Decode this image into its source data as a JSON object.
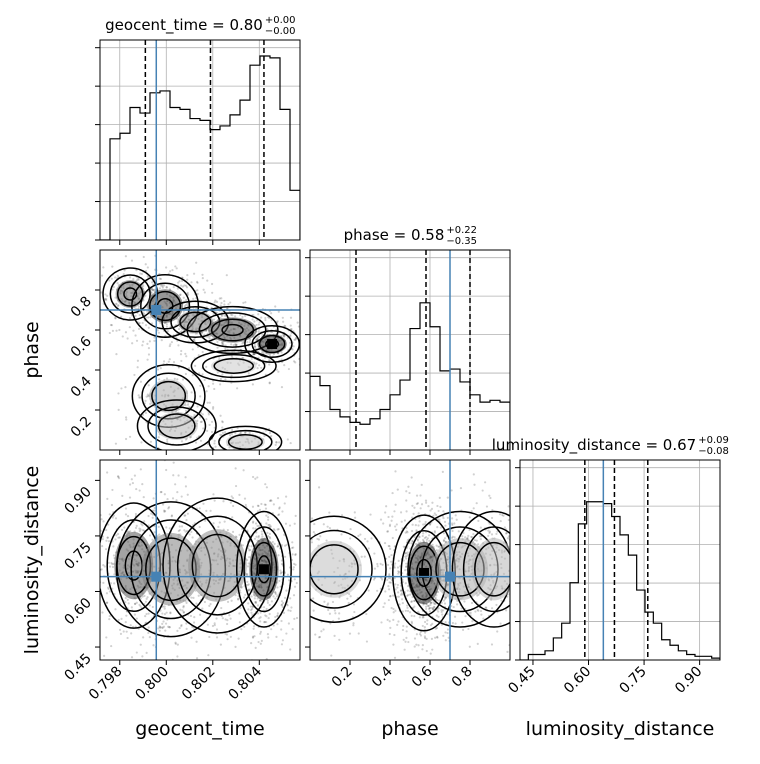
{
  "chart_data": {
    "type": "corner",
    "colors": {
      "truth": "#4682b4",
      "frame": "#000000",
      "grid": "#b0b0b0"
    },
    "grid": true,
    "parameters": [
      {
        "name": "geocent_time",
        "label": "geocent_time",
        "truth": 0.79957,
        "range": [
          0.79715,
          0.80575
        ],
        "ticks": [
          0.798,
          0.8,
          0.802,
          0.804
        ],
        "tick_labels": [
          "0.798",
          "0.800",
          "0.802",
          "0.804"
        ],
        "quantiles": [
          0.7991,
          0.8019,
          0.8042
        ],
        "title": "geocent_time = 0.80",
        "title_plus": "+0.00",
        "title_minus": "−0.00",
        "histogram": [
          0.0,
          0.55,
          0.58,
          0.72,
          0.69,
          0.8,
          0.81,
          0.72,
          0.71,
          0.66,
          0.65,
          0.6,
          0.62,
          0.68,
          0.76,
          0.95,
          1.0,
          0.99,
          0.71,
          0.27
        ]
      },
      {
        "name": "phase",
        "label": "phase",
        "truth": 0.7,
        "range": [
          0.0,
          1.0
        ],
        "ticks": [
          0.2,
          0.4,
          0.6,
          0.8
        ],
        "tick_labels": [
          "0.2",
          "0.4",
          "0.6",
          "0.8"
        ],
        "quantiles": [
          0.23,
          0.58,
          0.8
        ],
        "title": "phase = 0.58",
        "title_plus": "+0.22",
        "title_minus": "−0.35",
        "histogram": [
          0.4,
          0.35,
          0.22,
          0.18,
          0.15,
          0.14,
          0.17,
          0.22,
          0.3,
          0.38,
          0.66,
          0.8,
          0.67,
          0.43,
          0.44,
          0.37,
          0.3,
          0.26,
          0.27,
          0.26
        ]
      },
      {
        "name": "luminosity_distance",
        "label": "luminosity_distance",
        "truth": 0.64,
        "range": [
          0.415,
          0.955
        ],
        "ticks": [
          0.45,
          0.6,
          0.75,
          0.9
        ],
        "tick_labels": [
          "0.45",
          "0.60",
          "0.75",
          "0.90"
        ],
        "quantiles": [
          0.59,
          0.67,
          0.76
        ],
        "title": "luminosity_distance = 0.67",
        "title_plus": "+0.09",
        "title_minus": "−0.08",
        "histogram": [
          0.0,
          0.03,
          0.03,
          0.05,
          0.12,
          0.2,
          0.42,
          0.74,
          0.86,
          0.86,
          0.85,
          0.78,
          0.68,
          0.57,
          0.38,
          0.26,
          0.2,
          0.11,
          0.08,
          0.05,
          0.03,
          0.02,
          0.02,
          0.01
        ]
      }
    ],
    "panels": [
      {
        "x": "geocent_time",
        "y": "phase",
        "density_blobs": [
          {
            "cx": 0.79845,
            "cy": 0.78,
            "sx": 0.00045,
            "sy": 0.05,
            "w": 0.7
          },
          {
            "cx": 0.79995,
            "cy": 0.72,
            "sx": 0.00055,
            "sy": 0.06,
            "w": 0.9
          },
          {
            "cx": 0.80125,
            "cy": 0.64,
            "sx": 0.00055,
            "sy": 0.04,
            "w": 0.6
          },
          {
            "cx": 0.80285,
            "cy": 0.6,
            "sx": 0.00075,
            "sy": 0.045,
            "w": 0.85
          },
          {
            "cx": 0.80455,
            "cy": 0.53,
            "sx": 0.00045,
            "sy": 0.035,
            "w": 1.0
          },
          {
            "cx": 0.8029,
            "cy": 0.42,
            "sx": 0.0007,
            "sy": 0.03,
            "w": 0.25
          },
          {
            "cx": 0.8001,
            "cy": 0.27,
            "sx": 0.0006,
            "sy": 0.06,
            "w": 0.4
          },
          {
            "cx": 0.80045,
            "cy": 0.12,
            "sx": 0.00065,
            "sy": 0.05,
            "w": 0.35
          },
          {
            "cx": 0.8034,
            "cy": 0.04,
            "sx": 0.0006,
            "sy": 0.03,
            "w": 0.3
          }
        ]
      },
      {
        "x": "geocent_time",
        "y": "luminosity_distance",
        "density_blobs": [
          {
            "cx": 0.7986,
            "cy": 0.67,
            "sx": 0.0006,
            "sy": 0.065,
            "w": 0.8
          },
          {
            "cx": 0.8002,
            "cy": 0.66,
            "sx": 0.0009,
            "sy": 0.07,
            "w": 0.6
          },
          {
            "cx": 0.8022,
            "cy": 0.67,
            "sx": 0.0009,
            "sy": 0.07,
            "w": 0.55
          },
          {
            "cx": 0.8042,
            "cy": 0.66,
            "sx": 0.00045,
            "sy": 0.06,
            "w": 1.0
          }
        ]
      },
      {
        "x": "phase",
        "y": "luminosity_distance",
        "density_blobs": [
          {
            "cx": 0.57,
            "cy": 0.65,
            "sx": 0.06,
            "sy": 0.06,
            "w": 1.0
          },
          {
            "cx": 0.75,
            "cy": 0.66,
            "sx": 0.1,
            "sy": 0.06,
            "w": 0.4
          },
          {
            "cx": 0.12,
            "cy": 0.66,
            "sx": 0.1,
            "sy": 0.055,
            "w": 0.3
          },
          {
            "cx": 0.92,
            "cy": 0.66,
            "sx": 0.08,
            "sy": 0.06,
            "w": 0.35
          }
        ]
      }
    ]
  }
}
